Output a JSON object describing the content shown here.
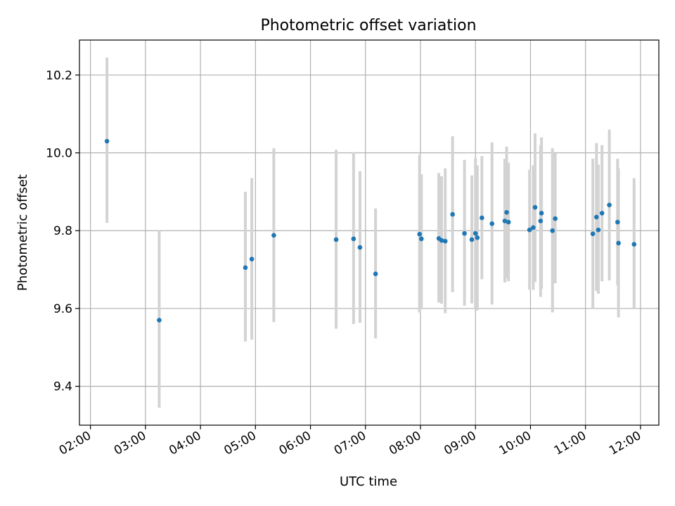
{
  "chart_data": {
    "type": "scatter",
    "title": "Photometric offset variation",
    "xlabel": "UTC time",
    "ylabel": "Photometric offset",
    "x_axis": {
      "scale": "time",
      "range": [
        "01:48",
        "12:20"
      ],
      "ticks": [
        "02:00",
        "03:00",
        "04:00",
        "05:00",
        "06:00",
        "07:00",
        "08:00",
        "09:00",
        "10:00",
        "11:00",
        "12:00"
      ]
    },
    "y_axis": {
      "range": [
        9.3,
        10.29
      ],
      "ticks": [
        "9.4",
        "9.6",
        "9.8",
        "10.0",
        "10.2"
      ]
    },
    "grid": true,
    "marker_color": "#1f77b4",
    "errorbar_color": "#d3d3d3",
    "series": [
      {
        "points": [
          {
            "t": "02:18",
            "y": 10.03,
            "lo": 9.82,
            "hi": 10.245
          },
          {
            "t": "03:15",
            "y": 9.57,
            "lo": 9.345,
            "hi": 9.8
          },
          {
            "t": "04:49",
            "y": 9.705,
            "lo": 9.515,
            "hi": 9.9
          },
          {
            "t": "04:56",
            "y": 9.727,
            "lo": 9.52,
            "hi": 9.935
          },
          {
            "t": "05:20",
            "y": 9.788,
            "lo": 9.565,
            "hi": 10.012
          },
          {
            "t": "06:28",
            "y": 9.777,
            "lo": 9.548,
            "hi": 10.008
          },
          {
            "t": "06:47",
            "y": 9.779,
            "lo": 9.56,
            "hi": 10.002
          },
          {
            "t": "06:54",
            "y": 9.757,
            "lo": 9.563,
            "hi": 9.953
          },
          {
            "t": "07:11",
            "y": 9.689,
            "lo": 9.523,
            "hi": 9.857
          },
          {
            "t": "07:59",
            "y": 9.791,
            "lo": 9.59,
            "hi": 9.995
          },
          {
            "t": "08:01",
            "y": 9.779,
            "lo": 9.6,
            "hi": 9.945
          },
          {
            "t": "08:20",
            "y": 9.78,
            "lo": 9.615,
            "hi": 9.948
          },
          {
            "t": "08:23",
            "y": 9.775,
            "lo": 9.612,
            "hi": 9.94
          },
          {
            "t": "08:27",
            "y": 9.773,
            "lo": 9.588,
            "hi": 9.96
          },
          {
            "t": "08:35",
            "y": 9.842,
            "lo": 9.642,
            "hi": 10.043
          },
          {
            "t": "08:48",
            "y": 9.793,
            "lo": 9.607,
            "hi": 9.982
          },
          {
            "t": "08:56",
            "y": 9.777,
            "lo": 9.613,
            "hi": 9.942
          },
          {
            "t": "09:00",
            "y": 9.793,
            "lo": 9.6,
            "hi": 9.987
          },
          {
            "t": "09:02",
            "y": 9.782,
            "lo": 9.595,
            "hi": 9.968
          },
          {
            "t": "09:07",
            "y": 9.833,
            "lo": 9.675,
            "hi": 9.992
          },
          {
            "t": "09:18",
            "y": 9.818,
            "lo": 9.61,
            "hi": 10.027
          },
          {
            "t": "09:32",
            "y": 9.825,
            "lo": 9.667,
            "hi": 9.985
          },
          {
            "t": "09:34",
            "y": 9.847,
            "lo": 9.678,
            "hi": 10.016
          },
          {
            "t": "09:36",
            "y": 9.822,
            "lo": 9.67,
            "hi": 9.975
          },
          {
            "t": "09:59",
            "y": 9.802,
            "lo": 9.648,
            "hi": 9.957
          },
          {
            "t": "10:03",
            "y": 9.808,
            "lo": 9.648,
            "hi": 9.968
          },
          {
            "t": "10:05",
            "y": 9.86,
            "lo": 9.668,
            "hi": 10.05
          },
          {
            "t": "10:11",
            "y": 9.825,
            "lo": 9.63,
            "hi": 10.02
          },
          {
            "t": "10:12",
            "y": 9.845,
            "lo": 9.65,
            "hi": 10.04
          },
          {
            "t": "10:24",
            "y": 9.8,
            "lo": 9.59,
            "hi": 10.012
          },
          {
            "t": "10:27",
            "y": 9.831,
            "lo": 9.665,
            "hi": 9.999
          },
          {
            "t": "11:08",
            "y": 9.792,
            "lo": 9.6,
            "hi": 9.985
          },
          {
            "t": "11:12",
            "y": 9.835,
            "lo": 9.645,
            "hi": 10.025
          },
          {
            "t": "11:14",
            "y": 9.802,
            "lo": 9.638,
            "hi": 9.97
          },
          {
            "t": "11:18",
            "y": 9.845,
            "lo": 9.67,
            "hi": 10.02
          },
          {
            "t": "11:26",
            "y": 9.866,
            "lo": 9.672,
            "hi": 10.06
          },
          {
            "t": "11:35",
            "y": 9.822,
            "lo": 9.66,
            "hi": 9.985
          },
          {
            "t": "11:36",
            "y": 9.768,
            "lo": 9.577,
            "hi": 9.96
          },
          {
            "t": "11:53",
            "y": 9.765,
            "lo": 9.598,
            "hi": 9.935
          }
        ]
      }
    ]
  }
}
